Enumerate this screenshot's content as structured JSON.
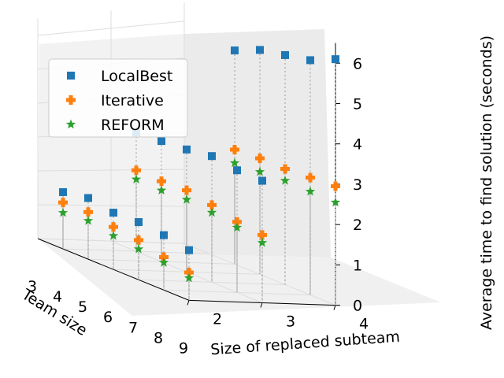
{
  "chart_data": {
    "type": "scatter",
    "projection": "3d",
    "title": "",
    "xlabel": "Size of replaced subteam",
    "ylabel": "Team size",
    "zlabel": "Average time to find solution (seconds)",
    "x_ticks": [
      "2",
      "3",
      "4"
    ],
    "y_ticks": [
      "3",
      "4",
      "5",
      "6",
      "7",
      "8",
      "9"
    ],
    "z_ticks": [
      "0",
      "1",
      "2",
      "3",
      "4",
      "5",
      "6"
    ],
    "zlim": [
      0,
      6.5
    ],
    "team_sizes": [
      3,
      4,
      5,
      6,
      7,
      8,
      9
    ],
    "legend_position": "top-left",
    "series": [
      {
        "name": "LocalBest",
        "marker": "square",
        "color": "#1f77b4",
        "points": [
          {
            "subteam": 2,
            "team": 4,
            "value": 1.65
          },
          {
            "subteam": 2,
            "team": 5,
            "value": 1.75
          },
          {
            "subteam": 2,
            "team": 6,
            "value": 1.6
          },
          {
            "subteam": 2,
            "team": 7,
            "value": 1.6
          },
          {
            "subteam": 2,
            "team": 8,
            "value": 1.5
          },
          {
            "subteam": 2,
            "team": 9,
            "value": 1.35
          },
          {
            "subteam": 3,
            "team": 4,
            "value": 3.3
          },
          {
            "subteam": 3,
            "team": 5,
            "value": 3.3
          },
          {
            "subteam": 3,
            "team": 6,
            "value": 3.3
          },
          {
            "subteam": 3,
            "team": 7,
            "value": 3.35
          },
          {
            "subteam": 3,
            "team": 8,
            "value": 3.2
          },
          {
            "subteam": 3,
            "team": 9,
            "value": 3.15
          },
          {
            "subteam": 4,
            "team": 5,
            "value": 5.6
          },
          {
            "subteam": 4,
            "team": 6,
            "value": 5.8
          },
          {
            "subteam": 4,
            "team": 7,
            "value": 5.85
          },
          {
            "subteam": 4,
            "team": 8,
            "value": 5.9
          },
          {
            "subteam": 4,
            "team": 9,
            "value": 6.1
          }
        ]
      },
      {
        "name": "Iterative",
        "marker": "plus",
        "color": "#ff7f0e",
        "points": [
          {
            "subteam": 2,
            "team": 4,
            "value": 1.35
          },
          {
            "subteam": 2,
            "team": 5,
            "value": 1.35
          },
          {
            "subteam": 2,
            "team": 6,
            "value": 1.2
          },
          {
            "subteam": 2,
            "team": 7,
            "value": 1.1
          },
          {
            "subteam": 2,
            "team": 8,
            "value": 0.9
          },
          {
            "subteam": 2,
            "team": 9,
            "value": 0.75
          },
          {
            "subteam": 3,
            "team": 4,
            "value": 2.25
          },
          {
            "subteam": 3,
            "team": 5,
            "value": 2.2
          },
          {
            "subteam": 3,
            "team": 6,
            "value": 2.2
          },
          {
            "subteam": 3,
            "team": 7,
            "value": 2.05
          },
          {
            "subteam": 3,
            "team": 8,
            "value": 1.85
          },
          {
            "subteam": 3,
            "team": 9,
            "value": 1.75
          },
          {
            "subteam": 4,
            "team": 5,
            "value": 3.0
          },
          {
            "subteam": 4,
            "team": 6,
            "value": 3.0
          },
          {
            "subteam": 4,
            "team": 7,
            "value": 2.95
          },
          {
            "subteam": 4,
            "team": 8,
            "value": 2.95
          },
          {
            "subteam": 4,
            "team": 9,
            "value": 2.95
          }
        ]
      },
      {
        "name": "REFORM",
        "marker": "star",
        "color": "#2ca02c",
        "points": [
          {
            "subteam": 2,
            "team": 4,
            "value": 1.05
          },
          {
            "subteam": 2,
            "team": 5,
            "value": 1.1
          },
          {
            "subteam": 2,
            "team": 6,
            "value": 0.95
          },
          {
            "subteam": 2,
            "team": 7,
            "value": 0.85
          },
          {
            "subteam": 2,
            "team": 8,
            "value": 0.75
          },
          {
            "subteam": 2,
            "team": 9,
            "value": 0.6
          },
          {
            "subteam": 3,
            "team": 4,
            "value": 2.0
          },
          {
            "subteam": 3,
            "team": 5,
            "value": 1.95
          },
          {
            "subteam": 3,
            "team": 6,
            "value": 1.95
          },
          {
            "subteam": 3,
            "team": 7,
            "value": 1.85
          },
          {
            "subteam": 3,
            "team": 8,
            "value": 1.7
          },
          {
            "subteam": 3,
            "team": 9,
            "value": 1.55
          },
          {
            "subteam": 4,
            "team": 5,
            "value": 2.65
          },
          {
            "subteam": 4,
            "team": 6,
            "value": 2.65
          },
          {
            "subteam": 4,
            "team": 7,
            "value": 2.65
          },
          {
            "subteam": 4,
            "team": 8,
            "value": 2.6
          },
          {
            "subteam": 4,
            "team": 9,
            "value": 2.55
          }
        ]
      }
    ]
  }
}
